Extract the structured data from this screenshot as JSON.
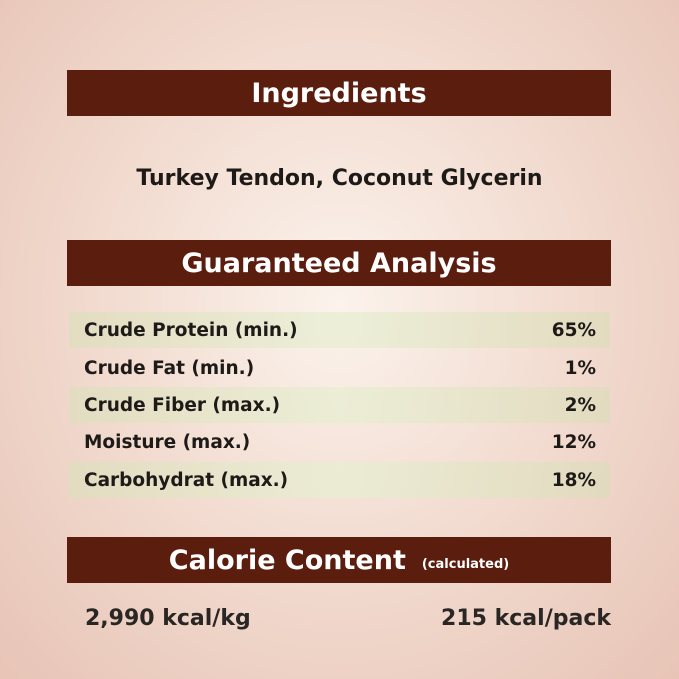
{
  "ingredients": {
    "title": "Ingredients",
    "text": "Turkey Tendon, Coconut Glycerin"
  },
  "analysis": {
    "title": "Guaranteed Analysis",
    "rows": [
      {
        "label": "Crude Protein (min.)",
        "value": "65%"
      },
      {
        "label": "Crude Fat (min.)",
        "value": "1%"
      },
      {
        "label": "Crude Fiber (max.)",
        "value": "2%"
      },
      {
        "label": "Moisture (max.)",
        "value": "12%"
      },
      {
        "label": "Carbohydrat (max.)",
        "value": "18%"
      }
    ]
  },
  "calorie": {
    "title": "Calorie Content",
    "note": "(calculated)",
    "per_kg": "2,990 kcal/kg",
    "per_pack": "215 kcal/pack"
  },
  "colors": {
    "banner": "#5b1d0d",
    "row_highlight": "#e2e2c4"
  }
}
